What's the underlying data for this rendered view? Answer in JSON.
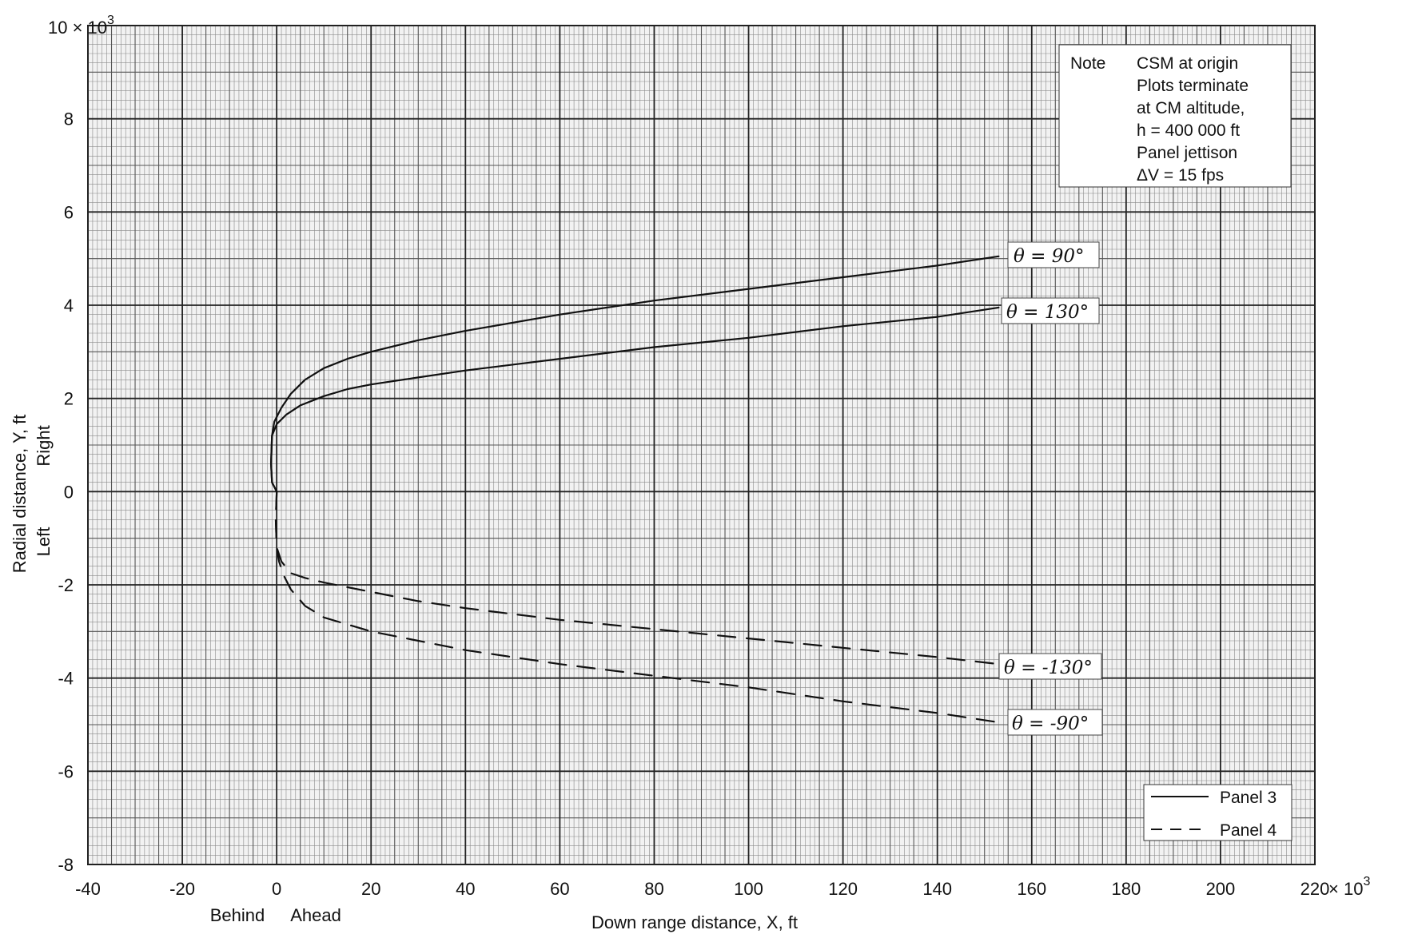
{
  "chart_data": {
    "type": "line",
    "xlabel": "Down range distance, X, ft",
    "x_under_labels": {
      "left": "Behind",
      "right": "Ahead"
    },
    "ylabel": "Radial distance, Y, ft",
    "y_side_labels": {
      "upper": "Right",
      "lower": "Left"
    },
    "x_multiplier": "× 10",
    "x_multiplier_exp": "3",
    "y_multiplier": "10 × 10",
    "y_multiplier_exp": "3",
    "xlim": [
      -40000,
      220000
    ],
    "ylim": [
      -8000,
      10000
    ],
    "x_tick_labels": [
      "-40",
      "-20",
      "0",
      "20",
      "40",
      "60",
      "80",
      "100",
      "120",
      "140",
      "160",
      "180",
      "200",
      "220"
    ],
    "y_tick_labels": [
      "-8",
      "-6",
      "-4",
      "-2",
      "0",
      "2",
      "4",
      "6",
      "8"
    ],
    "grid": true,
    "note": {
      "heading": "Note",
      "lines": [
        "CSM at origin",
        "Plots terminate",
        "at CM altitude,",
        "h = 400 000 ft",
        "Panel jettison",
        "ΔV = 15 fps"
      ]
    },
    "legend": {
      "placement": "bottom-right",
      "entries": [
        {
          "label": "Panel 3",
          "style": "solid"
        },
        {
          "label": "Panel 4",
          "style": "dashed"
        }
      ]
    },
    "series": [
      {
        "label": "θ = 90°",
        "panel": "Panel 3",
        "style": "solid",
        "x": [
          0,
          -1000,
          -1200,
          -1000,
          -500,
          1000,
          3000,
          6000,
          10000,
          15000,
          20000,
          30000,
          40000,
          60000,
          80000,
          100000,
          120000,
          140000,
          153000
        ],
        "y": [
          0,
          200,
          600,
          1200,
          1500,
          1800,
          2100,
          2400,
          2650,
          2850,
          3000,
          3250,
          3450,
          3800,
          4100,
          4350,
          4600,
          4850,
          5050
        ]
      },
      {
        "label": "θ = 130°",
        "panel": "Panel 3",
        "style": "solid",
        "x": [
          0,
          -1000,
          -1200,
          -1000,
          0,
          2000,
          5000,
          10000,
          15000,
          20000,
          30000,
          40000,
          60000,
          80000,
          100000,
          120000,
          140000,
          153000
        ],
        "y": [
          0,
          200,
          600,
          1200,
          1450,
          1650,
          1850,
          2050,
          2200,
          2300,
          2450,
          2600,
          2850,
          3100,
          3300,
          3550,
          3750,
          3950
        ]
      },
      {
        "label": "θ = -130°",
        "panel": "Panel 4",
        "style": "dashed",
        "x": [
          0,
          -200,
          0,
          1000,
          3000,
          6000,
          10000,
          20000,
          30000,
          40000,
          60000,
          80000,
          100000,
          120000,
          140000,
          153000
        ],
        "y": [
          0,
          -600,
          -1200,
          -1500,
          -1750,
          -1850,
          -1950,
          -2150,
          -2350,
          -2500,
          -2750,
          -2950,
          -3150,
          -3350,
          -3550,
          -3700
        ]
      },
      {
        "label": "θ = -90°",
        "panel": "Panel 4",
        "style": "dashed",
        "x": [
          0,
          -200,
          0,
          500,
          1500,
          3000,
          6000,
          10000,
          20000,
          30000,
          40000,
          60000,
          80000,
          100000,
          120000,
          140000,
          153000
        ],
        "y": [
          0,
          -600,
          -1200,
          -1500,
          -1800,
          -2100,
          -2450,
          -2700,
          -3000,
          -3200,
          -3400,
          -3700,
          -3950,
          -4200,
          -4500,
          -4750,
          -4950
        ]
      }
    ]
  }
}
